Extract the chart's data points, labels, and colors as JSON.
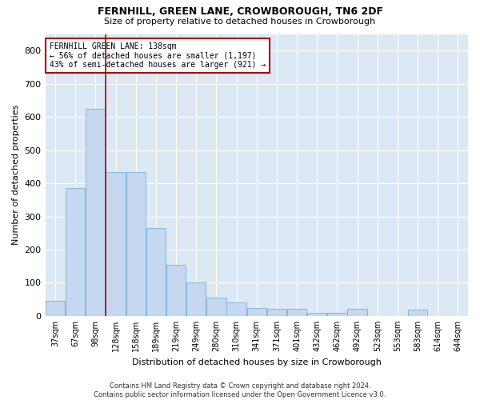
{
  "title": "FERNHILL, GREEN LANE, CROWBOROUGH, TN6 2DF",
  "subtitle": "Size of property relative to detached houses in Crowborough",
  "xlabel": "Distribution of detached houses by size in Crowborough",
  "ylabel": "Number of detached properties",
  "bar_color": "#c5d8f0",
  "bar_edge_color": "#7ab0d8",
  "background_color": "#dce9f5",
  "grid_color": "#ffffff",
  "categories": [
    "37sqm",
    "67sqm",
    "98sqm",
    "128sqm",
    "158sqm",
    "189sqm",
    "219sqm",
    "249sqm",
    "280sqm",
    "310sqm",
    "341sqm",
    "371sqm",
    "401sqm",
    "432sqm",
    "462sqm",
    "492sqm",
    "523sqm",
    "553sqm",
    "583sqm",
    "614sqm",
    "644sqm"
  ],
  "values": [
    45,
    385,
    625,
    435,
    435,
    265,
    155,
    100,
    55,
    40,
    25,
    22,
    22,
    10,
    10,
    22,
    0,
    0,
    18,
    0,
    0
  ],
  "ylim": [
    0,
    850
  ],
  "yticks": [
    0,
    100,
    200,
    300,
    400,
    500,
    600,
    700,
    800
  ],
  "red_line_x": 2.5,
  "annotation_text": "FERNHILL GREEN LANE: 138sqm\n← 56% of detached houses are smaller (1,197)\n43% of semi-detached houses are larger (921) →",
  "annotation_box_color": "#ffffff",
  "annotation_border_color": "#aa0000",
  "footnote": "Contains HM Land Registry data © Crown copyright and database right 2024.\nContains public sector information licensed under the Open Government Licence v3.0.",
  "red_line_color": "#aa0000",
  "fig_bg": "#ffffff",
  "title_fontsize": 9,
  "subtitle_fontsize": 8,
  "ylabel_fontsize": 8,
  "xlabel_fontsize": 8,
  "tick_fontsize": 7,
  "annot_fontsize": 7,
  "footnote_fontsize": 6
}
